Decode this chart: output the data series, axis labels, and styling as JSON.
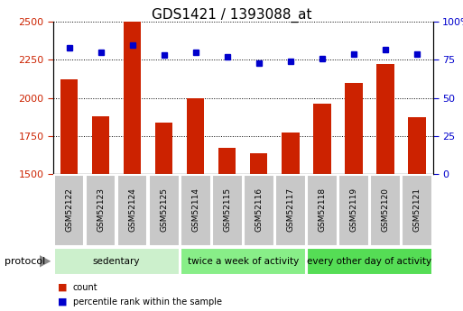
{
  "title": "GDS1421 / 1393088_at",
  "samples": [
    "GSM52122",
    "GSM52123",
    "GSM52124",
    "GSM52125",
    "GSM52114",
    "GSM52115",
    "GSM52116",
    "GSM52117",
    "GSM52118",
    "GSM52119",
    "GSM52120",
    "GSM52121"
  ],
  "counts": [
    2120,
    1880,
    2500,
    1840,
    2000,
    1670,
    1640,
    1775,
    1960,
    2100,
    2220,
    1875
  ],
  "percentiles": [
    83,
    80,
    85,
    78,
    80,
    77,
    73,
    74,
    76,
    79,
    82,
    79
  ],
  "bar_color": "#cc2200",
  "dot_color": "#0000cc",
  "ylim_left": [
    1500,
    2500
  ],
  "ylim_right": [
    0,
    100
  ],
  "yticks_left": [
    1500,
    1750,
    2000,
    2250,
    2500
  ],
  "yticks_right": [
    0,
    25,
    50,
    75,
    100
  ],
  "groups": [
    {
      "label": "sedentary",
      "start": 0,
      "end": 4,
      "color": "#ccf0cc"
    },
    {
      "label": "twice a week of activity",
      "start": 4,
      "end": 8,
      "color": "#88ee88"
    },
    {
      "label": "every other day of activity",
      "start": 8,
      "end": 12,
      "color": "#55dd55"
    }
  ],
  "protocol_label": "protocol",
  "legend_items": [
    {
      "color": "#cc2200",
      "label": "count"
    },
    {
      "color": "#0000cc",
      "label": "percentile rank within the sample"
    }
  ],
  "bg_color": "#ffffff",
  "plot_bg_color": "#ffffff",
  "tick_label_color_left": "#cc2200",
  "tick_label_color_right": "#0000cc",
  "title_fontsize": 11,
  "bar_width": 0.55,
  "sample_box_color": "#c8c8c8",
  "grid_color": "#000000"
}
